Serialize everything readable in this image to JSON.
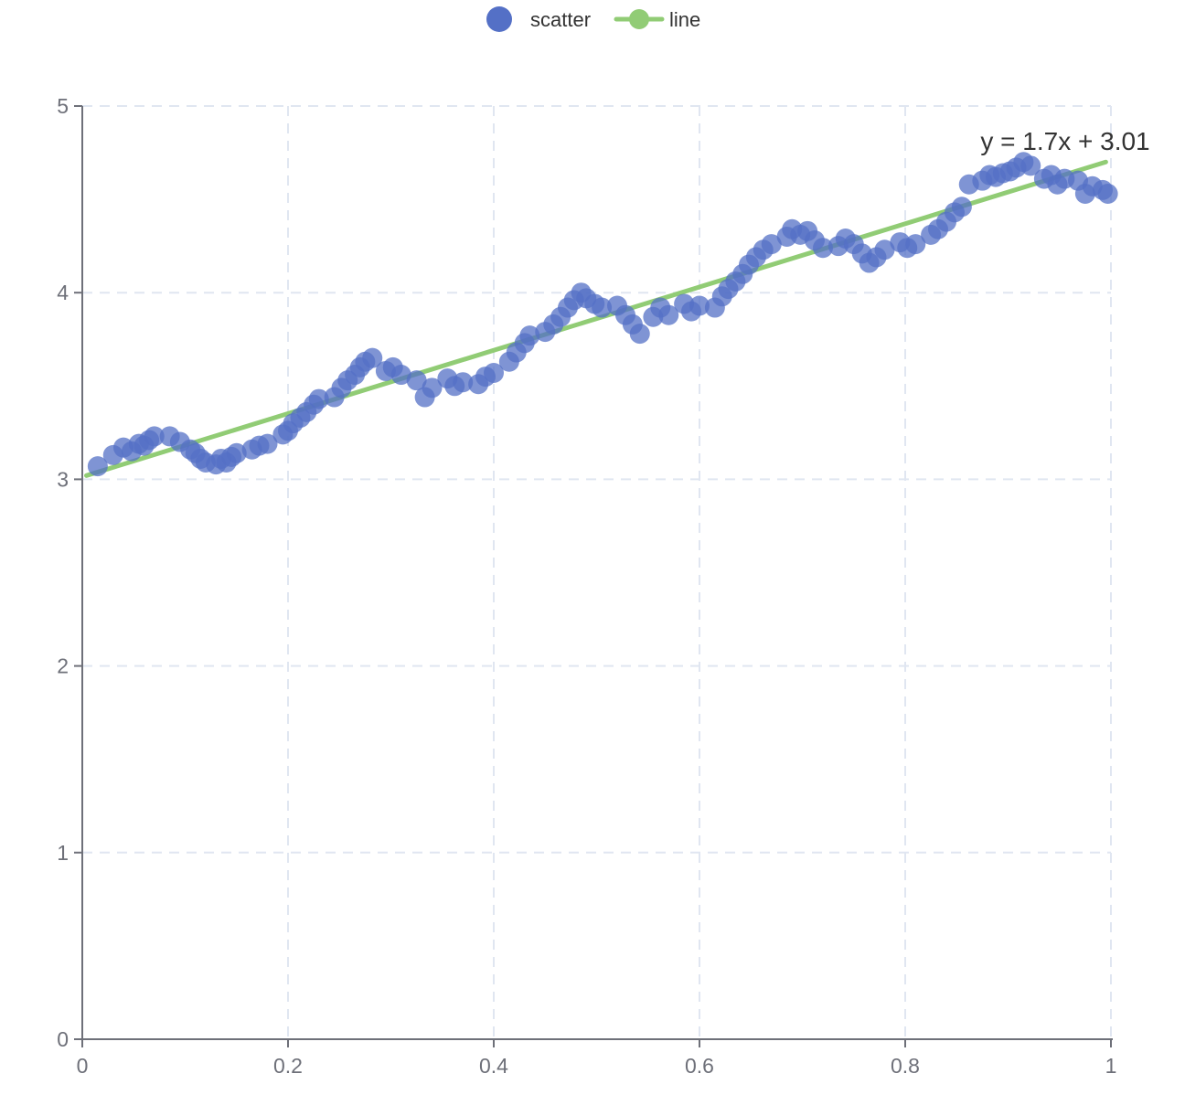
{
  "chart_data": {
    "type": "scatter",
    "title": "",
    "xlabel": "",
    "ylabel": "",
    "annotation": "y = 1.7x + 3.01",
    "xlim": [
      0,
      1
    ],
    "ylim": [
      0,
      5
    ],
    "grid": "dashed",
    "grid_color": "#E0E6F1",
    "axis_color": "#6E7079",
    "legend_position": "top-center",
    "x_ticks": [
      {
        "value": 0,
        "label": "0"
      },
      {
        "value": 0.2,
        "label": "0.2"
      },
      {
        "value": 0.4,
        "label": "0.4"
      },
      {
        "value": 0.6,
        "label": "0.6"
      },
      {
        "value": 0.8,
        "label": "0.8"
      },
      {
        "value": 1,
        "label": "1"
      }
    ],
    "y_ticks": [
      {
        "value": 0,
        "label": "0"
      },
      {
        "value": 1,
        "label": "1"
      },
      {
        "value": 2,
        "label": "2"
      },
      {
        "value": 3,
        "label": "3"
      },
      {
        "value": 4,
        "label": "4"
      },
      {
        "value": 5,
        "label": "5"
      }
    ],
    "series": [
      {
        "name": "scatter",
        "type": "scatter",
        "color": "#5470C6",
        "marker_radius": 11,
        "marker_opacity": 0.75,
        "points": [
          [
            0.015,
            3.07
          ],
          [
            0.03,
            3.13
          ],
          [
            0.04,
            3.17
          ],
          [
            0.048,
            3.15
          ],
          [
            0.055,
            3.19
          ],
          [
            0.06,
            3.18
          ],
          [
            0.065,
            3.21
          ],
          [
            0.07,
            3.23
          ],
          [
            0.085,
            3.23
          ],
          [
            0.095,
            3.2
          ],
          [
            0.105,
            3.16
          ],
          [
            0.11,
            3.14
          ],
          [
            0.115,
            3.11
          ],
          [
            0.12,
            3.09
          ],
          [
            0.13,
            3.08
          ],
          [
            0.135,
            3.11
          ],
          [
            0.14,
            3.09
          ],
          [
            0.145,
            3.12
          ],
          [
            0.15,
            3.14
          ],
          [
            0.165,
            3.16
          ],
          [
            0.172,
            3.18
          ],
          [
            0.18,
            3.19
          ],
          [
            0.195,
            3.24
          ],
          [
            0.2,
            3.26
          ],
          [
            0.205,
            3.3
          ],
          [
            0.212,
            3.33
          ],
          [
            0.218,
            3.36
          ],
          [
            0.225,
            3.4
          ],
          [
            0.23,
            3.43
          ],
          [
            0.245,
            3.44
          ],
          [
            0.252,
            3.49
          ],
          [
            0.258,
            3.53
          ],
          [
            0.265,
            3.56
          ],
          [
            0.27,
            3.6
          ],
          [
            0.275,
            3.63
          ],
          [
            0.282,
            3.65
          ],
          [
            0.295,
            3.58
          ],
          [
            0.302,
            3.6
          ],
          [
            0.31,
            3.56
          ],
          [
            0.325,
            3.53
          ],
          [
            0.333,
            3.44
          ],
          [
            0.34,
            3.49
          ],
          [
            0.355,
            3.54
          ],
          [
            0.362,
            3.5
          ],
          [
            0.37,
            3.52
          ],
          [
            0.385,
            3.51
          ],
          [
            0.392,
            3.55
          ],
          [
            0.4,
            3.57
          ],
          [
            0.415,
            3.63
          ],
          [
            0.422,
            3.68
          ],
          [
            0.43,
            3.73
          ],
          [
            0.435,
            3.77
          ],
          [
            0.45,
            3.79
          ],
          [
            0.458,
            3.83
          ],
          [
            0.465,
            3.87
          ],
          [
            0.472,
            3.92
          ],
          [
            0.478,
            3.96
          ],
          [
            0.485,
            4.0
          ],
          [
            0.49,
            3.97
          ],
          [
            0.498,
            3.94
          ],
          [
            0.505,
            3.92
          ],
          [
            0.52,
            3.93
          ],
          [
            0.528,
            3.88
          ],
          [
            0.535,
            3.83
          ],
          [
            0.542,
            3.78
          ],
          [
            0.555,
            3.87
          ],
          [
            0.562,
            3.92
          ],
          [
            0.57,
            3.88
          ],
          [
            0.585,
            3.94
          ],
          [
            0.592,
            3.9
          ],
          [
            0.6,
            3.93
          ],
          [
            0.615,
            3.92
          ],
          [
            0.622,
            3.98
          ],
          [
            0.628,
            4.02
          ],
          [
            0.635,
            4.06
          ],
          [
            0.642,
            4.1
          ],
          [
            0.648,
            4.15
          ],
          [
            0.655,
            4.19
          ],
          [
            0.662,
            4.23
          ],
          [
            0.67,
            4.26
          ],
          [
            0.685,
            4.3
          ],
          [
            0.69,
            4.34
          ],
          [
            0.698,
            4.31
          ],
          [
            0.705,
            4.33
          ],
          [
            0.712,
            4.28
          ],
          [
            0.72,
            4.24
          ],
          [
            0.735,
            4.25
          ],
          [
            0.742,
            4.29
          ],
          [
            0.75,
            4.26
          ],
          [
            0.758,
            4.21
          ],
          [
            0.765,
            4.16
          ],
          [
            0.772,
            4.19
          ],
          [
            0.78,
            4.23
          ],
          [
            0.795,
            4.27
          ],
          [
            0.802,
            4.24
          ],
          [
            0.81,
            4.26
          ],
          [
            0.825,
            4.31
          ],
          [
            0.832,
            4.34
          ],
          [
            0.84,
            4.38
          ],
          [
            0.848,
            4.43
          ],
          [
            0.855,
            4.46
          ],
          [
            0.862,
            4.58
          ],
          [
            0.875,
            4.6
          ],
          [
            0.882,
            4.63
          ],
          [
            0.888,
            4.62
          ],
          [
            0.895,
            4.64
          ],
          [
            0.902,
            4.65
          ],
          [
            0.908,
            4.67
          ],
          [
            0.915,
            4.7
          ],
          [
            0.922,
            4.68
          ],
          [
            0.935,
            4.61
          ],
          [
            0.942,
            4.63
          ],
          [
            0.948,
            4.58
          ],
          [
            0.955,
            4.61
          ],
          [
            0.968,
            4.6
          ],
          [
            0.975,
            4.53
          ],
          [
            0.982,
            4.57
          ],
          [
            0.992,
            4.55
          ],
          [
            0.997,
            4.53
          ]
        ]
      },
      {
        "name": "line",
        "type": "line",
        "color": "#91CC75",
        "line_width": 5,
        "equation": {
          "slope": 1.7,
          "intercept": 3.01
        },
        "points": [
          [
            0.004,
            3.02
          ],
          [
            0.995,
            4.7
          ]
        ]
      }
    ]
  }
}
